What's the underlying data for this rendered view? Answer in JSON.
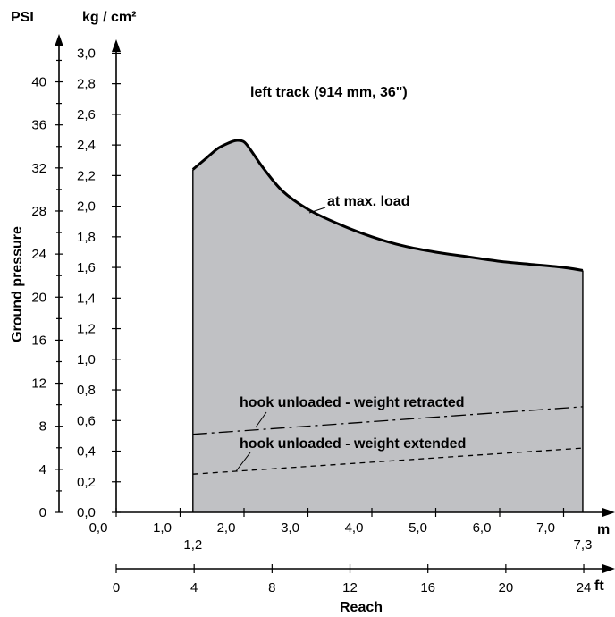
{
  "chart_data": {
    "type": "area",
    "title": "left track (914 mm, 36\")",
    "y_left_label": "Ground pressure",
    "y_left_unit": "PSI",
    "y_right_unit": "kg / cm²",
    "x_label": "Reach",
    "x_unit_m": "m",
    "x_unit_ft": "ft",
    "y_psi_ticks": [
      "0",
      "4",
      "8",
      "12",
      "16",
      "20",
      "24",
      "28",
      "32",
      "36",
      "40"
    ],
    "y_kg_ticks": [
      "0,0",
      "0,2",
      "0,4",
      "0,6",
      "0,8",
      "1,0",
      "1,2",
      "1,4",
      "1,6",
      "1,8",
      "2,0",
      "2,2",
      "2,4",
      "2,6",
      "2,8",
      "3,0"
    ],
    "x_m_ticks": [
      "0,0",
      "1,0",
      "2,0",
      "3,0",
      "4,0",
      "5,0",
      "6,0",
      "7,0"
    ],
    "x_ft_ticks": [
      "0",
      "4",
      "8",
      "12",
      "16",
      "20",
      "24"
    ],
    "x_m_extra": [
      "1,2",
      "7,3"
    ],
    "xlim_m": [
      0,
      7.3
    ],
    "ylim_kg": [
      0,
      3.0
    ],
    "series": [
      {
        "name": "at max. load",
        "style": "solid",
        "x": [
          1.2,
          1.4,
          1.6,
          1.8,
          1.9,
          2.0,
          2.1,
          2.3,
          2.6,
          3.0,
          3.5,
          4.0,
          4.5,
          5.0,
          5.5,
          6.0,
          6.5,
          7.0,
          7.3
        ],
        "y": [
          2.24,
          2.31,
          2.38,
          2.42,
          2.43,
          2.42,
          2.37,
          2.25,
          2.1,
          1.98,
          1.88,
          1.8,
          1.74,
          1.7,
          1.67,
          1.64,
          1.62,
          1.6,
          1.58
        ]
      },
      {
        "name": "hook unloaded - weight retracted",
        "style": "dash-dot",
        "x": [
          1.2,
          7.3
        ],
        "y": [
          0.51,
          0.69
        ]
      },
      {
        "name": "hook unloaded - weight extended",
        "style": "dashed",
        "x": [
          1.2,
          7.3
        ],
        "y": [
          0.25,
          0.42
        ]
      }
    ],
    "colors": {
      "fill": "#c0c1c4",
      "line": "#000000"
    }
  }
}
